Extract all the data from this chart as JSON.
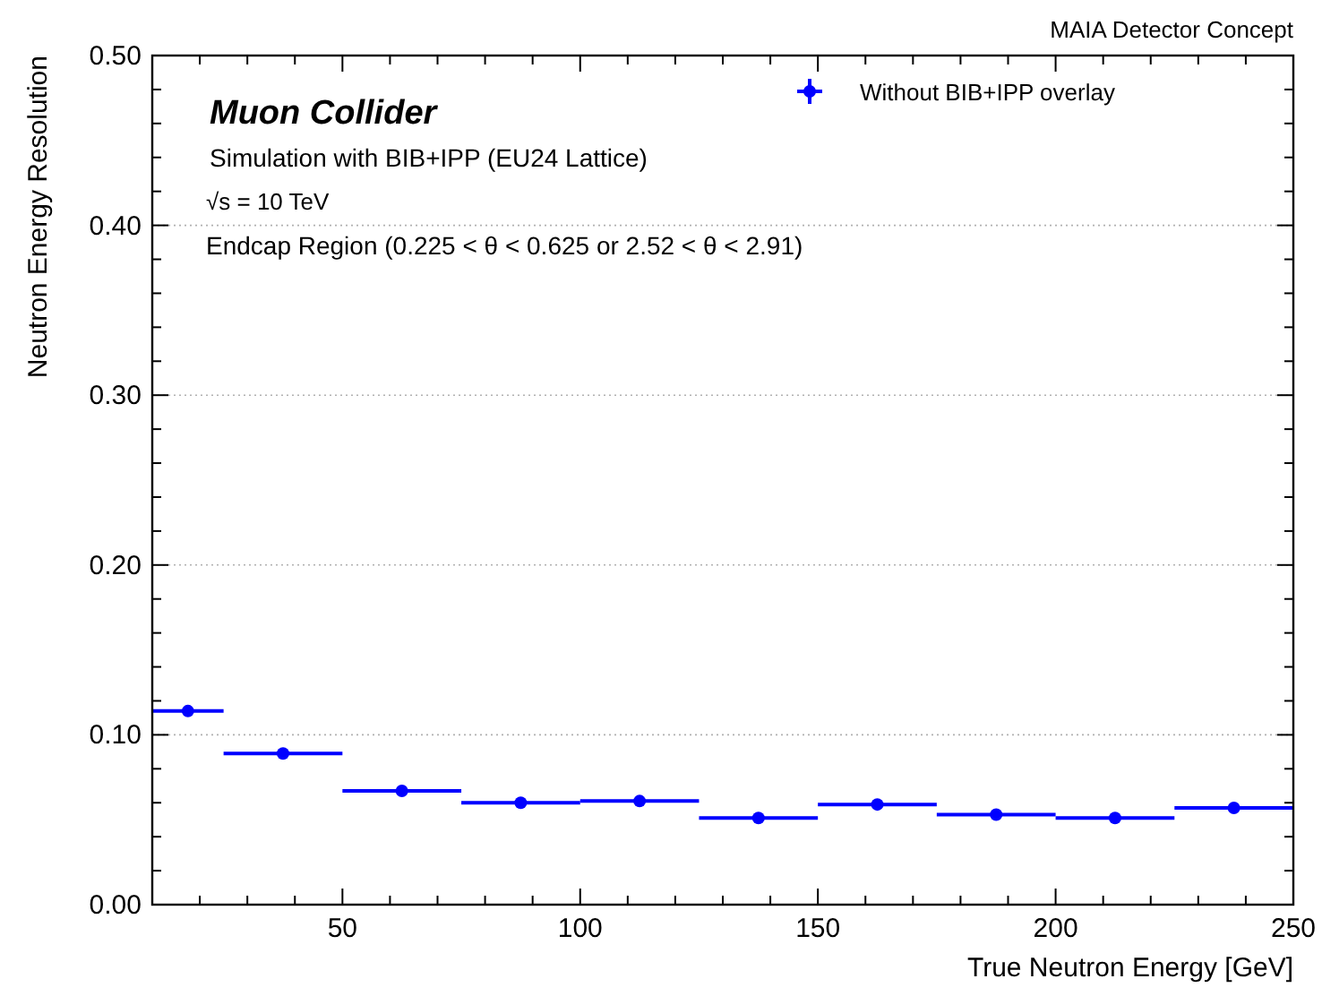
{
  "chart_data": {
    "type": "scatter",
    "xlabel": "True Neutron Energy [GeV]",
    "ylabel": "Neutron Energy Resolution",
    "annotations": [
      "MAIA Detector Concept",
      "Muon Collider",
      "Simulation with BIB+IPP (EU24 Lattice)",
      "√s = 10 TeV",
      "Endcap Region (0.225 < θ < 0.625 or 2.52 < θ < 2.91)"
    ],
    "series": [
      {
        "name": "Without BIB+IPP overlay",
        "color": "#0000ff",
        "x": [
          17.5,
          37.5,
          62.5,
          87.5,
          112.5,
          137.5,
          162.5,
          187.5,
          212.5,
          237.5
        ],
        "values": [
          0.114,
          0.089,
          0.067,
          0.06,
          0.061,
          0.051,
          0.059,
          0.053,
          0.051,
          0.057
        ],
        "xerrors": [
          7.5,
          12.5,
          12.5,
          12.5,
          12.5,
          12.5,
          12.5,
          12.5,
          12.5,
          12.5
        ]
      }
    ],
    "xlim": [
      10,
      250
    ],
    "xticks": [
      {
        "value": 20,
        "label": null
      },
      {
        "value": 30,
        "label": null
      },
      {
        "value": 40,
        "label": null
      },
      50,
      {
        "value": 60,
        "label": null
      },
      {
        "value": 70,
        "label": null
      },
      {
        "value": 80,
        "label": null
      },
      {
        "value": 90,
        "label": null
      },
      100,
      {
        "value": 110,
        "label": null
      },
      {
        "value": 120,
        "label": null
      },
      {
        "value": 130,
        "label": null
      },
      {
        "value": 140,
        "label": null
      },
      150,
      {
        "value": 160,
        "label": null
      },
      {
        "value": 170,
        "label": null
      },
      {
        "value": 180,
        "label": null
      },
      {
        "value": 190,
        "label": null
      },
      200,
      {
        "value": 210,
        "label": null
      },
      {
        "value": 220,
        "label": null
      },
      {
        "value": 230,
        "label": null
      },
      {
        "value": 240,
        "label": null
      },
      250
    ],
    "ylim": [
      0,
      0.5
    ],
    "yticks": [
      {
        "value": 0,
        "label": "0.00"
      },
      {
        "value": 0.02,
        "label": null
      },
      {
        "value": 0.04,
        "label": null
      },
      {
        "value": 0.06,
        "label": null
      },
      {
        "value": 0.08,
        "label": null
      },
      {
        "value": 0.1,
        "label": "0.10"
      },
      {
        "value": 0.12,
        "label": null
      },
      {
        "value": 0.14,
        "label": null
      },
      {
        "value": 0.16,
        "label": null
      },
      {
        "value": 0.18,
        "label": null
      },
      {
        "value": 0.2,
        "label": "0.20"
      },
      {
        "value": 0.22,
        "label": null
      },
      {
        "value": 0.24,
        "label": null
      },
      {
        "value": 0.26,
        "label": null
      },
      {
        "value": 0.28,
        "label": null
      },
      {
        "value": 0.3,
        "label": "0.30"
      },
      {
        "value": 0.32,
        "label": null
      },
      {
        "value": 0.34,
        "label": null
      },
      {
        "value": 0.36,
        "label": null
      },
      {
        "value": 0.38,
        "label": null
      },
      {
        "value": 0.4,
        "label": "0.40"
      },
      {
        "value": 0.42,
        "label": null
      },
      {
        "value": 0.44,
        "label": null
      },
      {
        "value": 0.46,
        "label": null
      },
      {
        "value": 0.48,
        "label": null
      },
      {
        "value": 0.5,
        "label": "0.50"
      }
    ],
    "grid": "y",
    "legend": "top right",
    "marker": "circle"
  }
}
